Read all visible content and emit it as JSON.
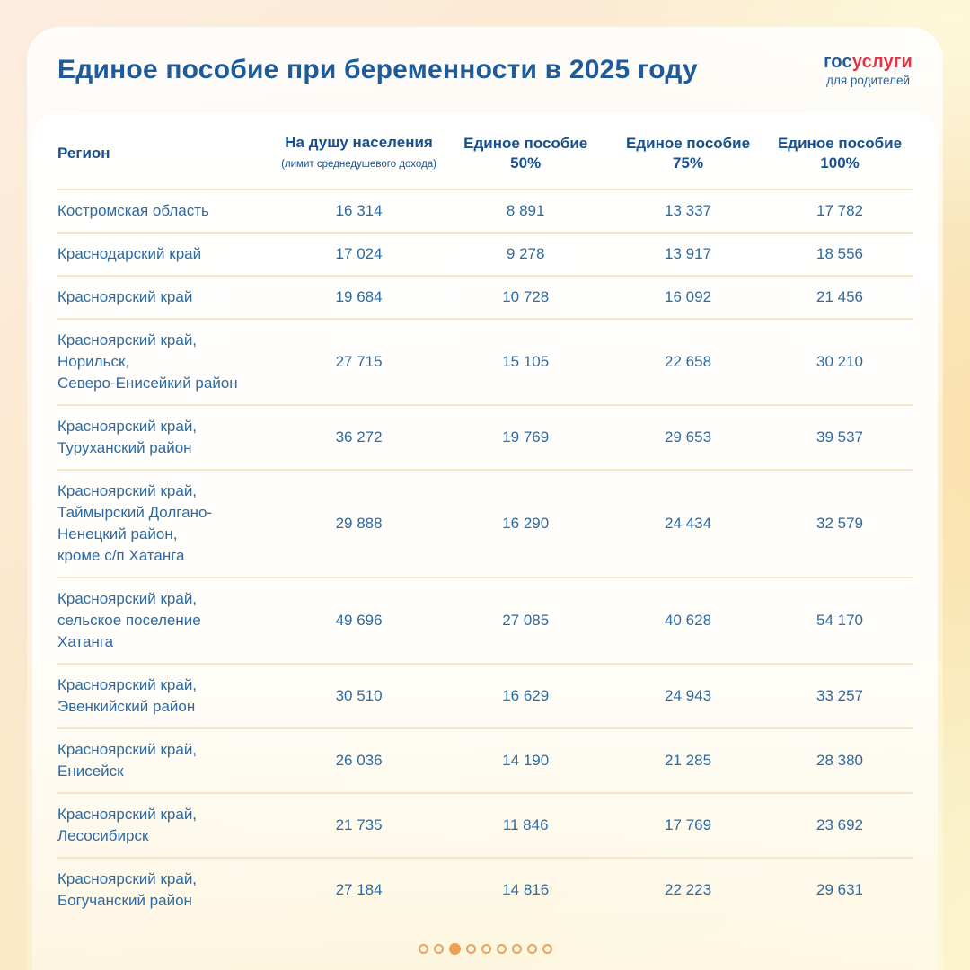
{
  "header": {
    "title": "Единое пособие при беременности в 2025 году",
    "logo": {
      "part_blue": "гос",
      "part_red": "услуги",
      "subtitle": "для родителей"
    }
  },
  "table": {
    "headers": {
      "region": "Регион",
      "per_capita": "На душу населения",
      "per_capita_note": "(лимит среднедушевого дохода)",
      "benefit": "Единое пособие",
      "p50": "50%",
      "p75": "75%",
      "p100": "100%"
    },
    "rows": [
      {
        "region": "Костромская область",
        "per_capita": "16 314",
        "b50": "8 891",
        "b75": "13 337",
        "b100": "17 782"
      },
      {
        "region": "Краснодарский край",
        "per_capita": "17 024",
        "b50": "9 278",
        "b75": "13 917",
        "b100": "18 556"
      },
      {
        "region": "Красноярский край",
        "per_capita": "19 684",
        "b50": "10 728",
        "b75": "16 092",
        "b100": "21 456"
      },
      {
        "region": "Красноярский край,\nНорильск,\nСеверо-Енисейкий район",
        "per_capita": "27 715",
        "b50": "15 105",
        "b75": "22 658",
        "b100": "30 210"
      },
      {
        "region": "Красноярский край,\nТуруханский район",
        "per_capita": "36 272",
        "b50": "19 769",
        "b75": "29 653",
        "b100": "39 537"
      },
      {
        "region": "Красноярский край,\nТаймырский Долгано-\nНенецкий район,\nкроме с/п Хатанга",
        "per_capita": "29 888",
        "b50": "16 290",
        "b75": "24 434",
        "b100": "32 579"
      },
      {
        "region": "Красноярский край,\nсельское поселение\nХатанга",
        "per_capita": "49 696",
        "b50": "27 085",
        "b75": "40 628",
        "b100": "54 170"
      },
      {
        "region": "Красноярский край,\nЭвенкийский район",
        "per_capita": "30 510",
        "b50": "16 629",
        "b75": "24 943",
        "b100": "33 257"
      },
      {
        "region": "Красноярский край,\nЕнисейск",
        "per_capita": "26 036",
        "b50": "14 190",
        "b75": "21 285",
        "b100": "28 380"
      },
      {
        "region": "Красноярский край,\nЛесосибирск",
        "per_capita": "21 735",
        "b50": "11 846",
        "b75": "17 769",
        "b100": "23 692"
      },
      {
        "region": "Красноярский край,\nБогучанский район",
        "per_capita": "27 184",
        "b50": "14 816",
        "b75": "22 223",
        "b100": "29 631"
      }
    ]
  },
  "pagination": {
    "total": 9,
    "active_index": 2
  },
  "colors": {
    "title_blue": "#1f5a99",
    "body_blue": "#2d6aa3",
    "header_blue": "#17508f",
    "logo_red": "#e23448",
    "divider_peach": "#f7e3c6",
    "dot_orange": "#eda15c",
    "dot_active_orange": "#f09e52"
  },
  "chart_data": {
    "type": "table",
    "title": "Единое пособие при беременности в 2025 году",
    "columns": [
      "Регион",
      "На душу населения (лимит среднедушевого дохода)",
      "Единое пособие 50%",
      "Единое пособие 75%",
      "Единое пособие 100%"
    ],
    "rows": [
      [
        "Костромская область",
        16314,
        8891,
        13337,
        17782
      ],
      [
        "Краснодарский край",
        17024,
        9278,
        13917,
        18556
      ],
      [
        "Красноярский край",
        19684,
        10728,
        16092,
        21456
      ],
      [
        "Красноярский край, Норильск, Северо-Енисейкий район",
        27715,
        15105,
        22658,
        30210
      ],
      [
        "Красноярский край, Туруханский район",
        36272,
        19769,
        29653,
        39537
      ],
      [
        "Красноярский край, Таймырский Долгано-Ненецкий район, кроме с/п Хатанга",
        29888,
        16290,
        24434,
        32579
      ],
      [
        "Красноярский край, сельское поселение Хатанга",
        49696,
        27085,
        40628,
        54170
      ],
      [
        "Красноярский край, Эвенкийский район",
        30510,
        16629,
        24943,
        33257
      ],
      [
        "Красноярский край, Енисейск",
        26036,
        14190,
        21285,
        28380
      ],
      [
        "Красноярский край, Лесосибирск",
        21735,
        11846,
        17769,
        23692
      ],
      [
        "Красноярский край, Богучанский район",
        27184,
        14816,
        22223,
        29631
      ]
    ]
  }
}
